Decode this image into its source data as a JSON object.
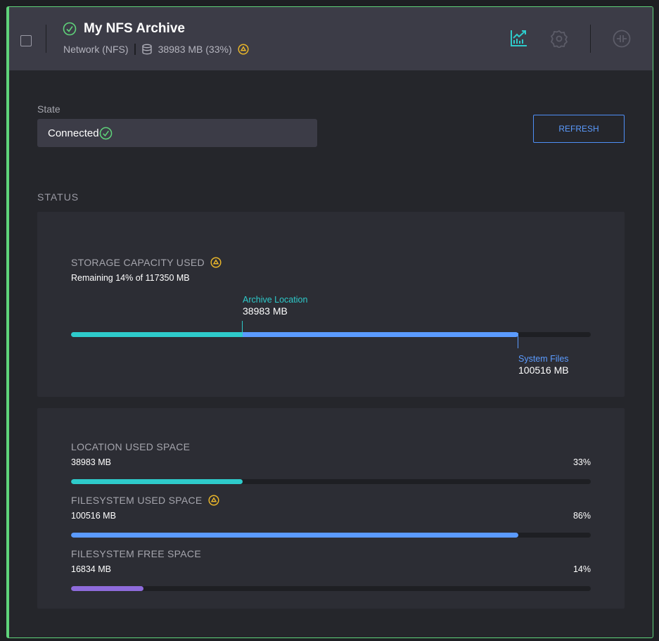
{
  "header": {
    "title": "My NFS Archive",
    "type": "Network (NFS)",
    "usage": "38983 MB (33%)"
  },
  "state": {
    "label": "State",
    "value": "Connected"
  },
  "refresh_label": "REFRESH",
  "status_label": "STATUS",
  "capacity": {
    "title": "STORAGE CAPACITY USED",
    "remaining": "Remaining 14% of 117350 MB",
    "archive_label": "Archive Location",
    "archive_value": "38983 MB",
    "archive_pct": 33,
    "system_label": "System Files",
    "system_value": "100516 MB",
    "system_pct": 86
  },
  "metrics": [
    {
      "title": "LOCATION USED SPACE",
      "value": "38983 MB",
      "pct_label": "33%",
      "pct": 33,
      "color": "#2ecbcb",
      "warn": false
    },
    {
      "title": "FILESYSTEM USED SPACE",
      "value": "100516 MB",
      "pct_label": "86%",
      "pct": 86,
      "color": "#5b9bff",
      "warn": true
    },
    {
      "title": "FILESYSTEM FREE SPACE",
      "value": "16834 MB",
      "pct_label": "14%",
      "pct": 14,
      "color": "#8e6bdb",
      "warn": false
    }
  ],
  "colors": {
    "success": "#5fd37a",
    "warning": "#e7b42a",
    "teal": "#2ecbcb",
    "blue": "#5b9bff",
    "purple": "#8e6bdb"
  }
}
